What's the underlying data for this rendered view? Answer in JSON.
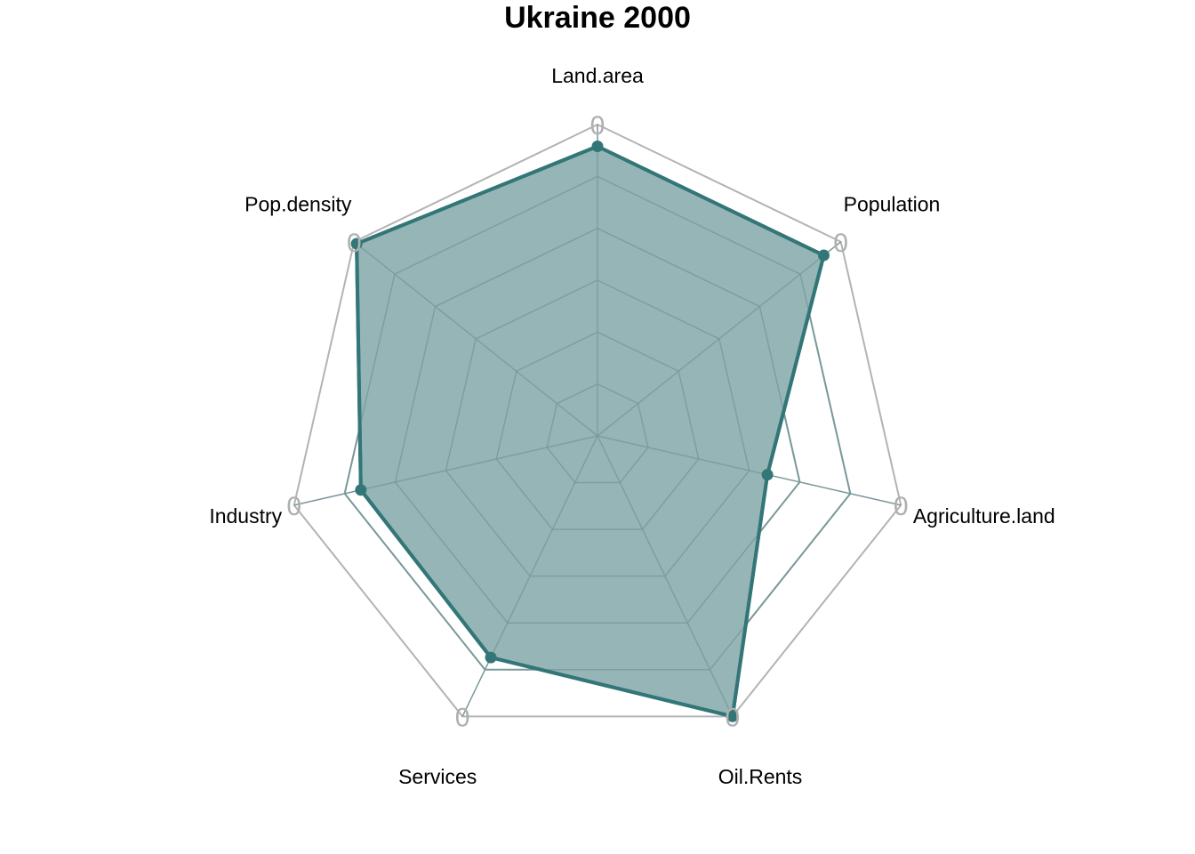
{
  "colors": {
    "series": "#337677",
    "fill": "#96b5b7",
    "grid_outer": "#b3b3b3",
    "grid_inner": "#7a9899"
  },
  "chart_data": {
    "type": "radar",
    "title": "Ukraine 2000",
    "axes": [
      "Land.area",
      "Population",
      "Agriculture.land",
      "Oil.Rents",
      "Services",
      "Industry",
      "Pop.density"
    ],
    "axis_max_labels": [
      "0",
      "0",
      "0",
      "0",
      "0",
      "0",
      "0"
    ],
    "grid_levels": 6,
    "series": [
      {
        "values": [
          0.93,
          0.93,
          0.56,
          1.0,
          0.79,
          0.78,
          0.99
        ]
      }
    ],
    "range": [
      0,
      1
    ],
    "legend": "none"
  }
}
